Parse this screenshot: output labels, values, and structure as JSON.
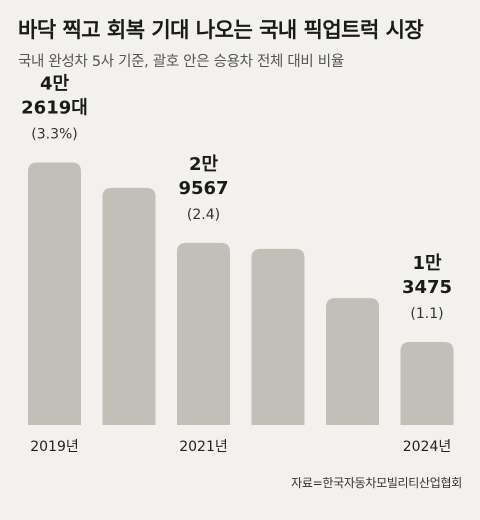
{
  "title": "바닥 찍고 회복 기대 나오는 국내 픽업트럭 시장",
  "subtitle": "국내 완성차 5사 기준, 괄호 안은 승용차 전체 대비 비율",
  "source": "자료=한국자동차모빌리티산업협회",
  "colors": {
    "bar": "#c2bfb9",
    "text": "#222222",
    "background": "#f3f1ed"
  },
  "chart_data": {
    "type": "bar",
    "categories": [
      "2019년",
      "",
      "2021년",
      "",
      "",
      "2024년"
    ],
    "values": [
      42619,
      38500,
      29567,
      28600,
      20600,
      13475
    ],
    "ylim": [
      0,
      50000
    ],
    "data_labels": [
      {
        "index": 0,
        "lines": [
          "4만",
          "2619대"
        ],
        "sub": "(3.3%)"
      },
      {
        "index": 2,
        "lines": [
          "2만",
          "9567"
        ],
        "sub": "(2.4)"
      },
      {
        "index": 5,
        "lines": [
          "1만",
          "3475"
        ],
        "sub": "(1.1)"
      }
    ],
    "grid": false,
    "legend": "none"
  }
}
